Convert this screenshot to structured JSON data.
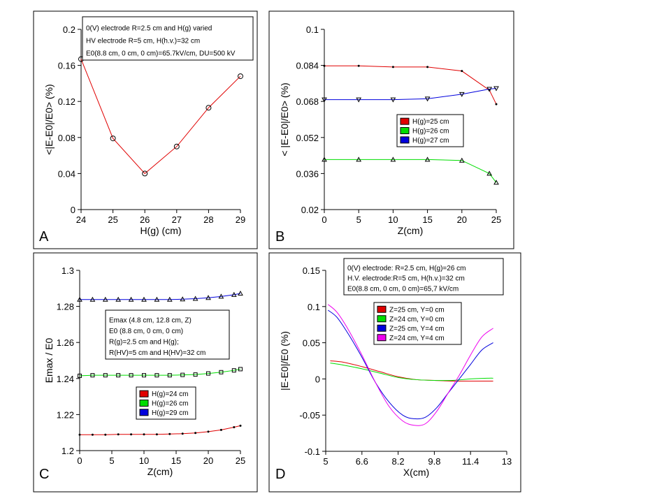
{
  "chart_data": [
    {
      "type": "line",
      "panel_label": "A",
      "xlabel": "H(g) (cm)",
      "ylabel": "<|E-E0|/E0> (%)",
      "xlim": [
        24,
        29
      ],
      "ylim": [
        0,
        0.2
      ],
      "xticks": [
        "24",
        "25",
        "26",
        "27",
        "28",
        "29"
      ],
      "yticks": [
        "0",
        "0.04",
        "0.08",
        "0.12",
        "0.16",
        "0.2"
      ],
      "annotation": [
        "0(V) electrode R=2.5 cm and H(g) varied",
        "HV electrode R=5 cm, H(h.v.)=32 cm",
        "E0(8.8 cm, 0 cm, 0 cm)=65.7kV/cm, DU=500 kV"
      ],
      "series": [
        {
          "color": "#e00000",
          "marker": "circle",
          "x": [
            24,
            25,
            26,
            27,
            28,
            29
          ],
          "y": [
            0.167,
            0.079,
            0.04,
            0.07,
            0.113,
            0.148
          ]
        }
      ]
    },
    {
      "type": "line",
      "panel_label": "B",
      "xlabel": "Z(cm)",
      "ylabel": "< |E-E0|/E0> (%)",
      "xlim": [
        0,
        25
      ],
      "ylim": [
        0.02,
        0.1
      ],
      "xticks": [
        "0",
        "5",
        "10",
        "15",
        "20",
        "25"
      ],
      "yticks": [
        "0.02",
        "0.036",
        "0.052",
        "0.068",
        "0.084",
        "0.1"
      ],
      "legend": {
        "position": "right"
      },
      "series": [
        {
          "name": "H(g)=25 cm",
          "color": "#e00000",
          "marker": "dot",
          "x": [
            0,
            5,
            10,
            15,
            20,
            24,
            25
          ],
          "y": [
            0.0838,
            0.0838,
            0.0833,
            0.0833,
            0.0815,
            0.073,
            0.0668
          ]
        },
        {
          "name": "H(g)=26 cm",
          "color": "#00dd00",
          "marker": "triangle-up",
          "x": [
            0,
            5,
            10,
            15,
            20,
            24,
            25
          ],
          "y": [
            0.0422,
            0.0422,
            0.0422,
            0.0422,
            0.0418,
            0.036,
            0.032
          ]
        },
        {
          "name": "H(g)=27 cm",
          "color": "#0000dd",
          "marker": "triangle-down",
          "x": [
            0,
            5,
            10,
            15,
            20,
            24,
            25
          ],
          "y": [
            0.0688,
            0.0688,
            0.0688,
            0.0692,
            0.0712,
            0.0735,
            0.0738
          ]
        }
      ]
    },
    {
      "type": "line",
      "panel_label": "C",
      "xlabel": "Z(cm)",
      "ylabel": "Emax / E0",
      "xlim": [
        0,
        25
      ],
      "ylim": [
        1.2,
        1.3
      ],
      "xticks": [
        "0",
        "5",
        "10",
        "15",
        "20",
        "25"
      ],
      "yticks": [
        "1.2",
        "1.22",
        "1.24",
        "1.26",
        "1.28",
        "1.3"
      ],
      "annotation": [
        "Emax (4.8 cm, 12.8 cm, Z)",
        "E0 (8.8 cm, 0 cm, 0 cm)",
        "R(g)=2.5 cm and H(g);",
        "R(HV)=5 cm and H(HV)=32 cm"
      ],
      "legend": {
        "position": "bottom-center"
      },
      "series": [
        {
          "name": "H(g)=24 cm",
          "color": "#e00000",
          "marker": "dot",
          "x": [
            0,
            2,
            4,
            6,
            8,
            10,
            12,
            14,
            16,
            18,
            20,
            22,
            24,
            25
          ],
          "y": [
            1.2088,
            1.2088,
            1.2088,
            1.209,
            1.209,
            1.209,
            1.209,
            1.2092,
            1.2094,
            1.2098,
            1.2105,
            1.2115,
            1.213,
            1.2138
          ]
        },
        {
          "name": "H(g)=26 cm",
          "color": "#00dd00",
          "marker": "square",
          "x": [
            0,
            2,
            4,
            6,
            8,
            10,
            12,
            14,
            16,
            18,
            20,
            22,
            24,
            25
          ],
          "y": [
            1.2415,
            1.2418,
            1.2418,
            1.2418,
            1.2418,
            1.2418,
            1.2418,
            1.2418,
            1.242,
            1.2422,
            1.2428,
            1.2435,
            1.2445,
            1.2452
          ]
        },
        {
          "name": "H(g)=29 cm",
          "color": "#0000dd",
          "marker": "triangle-up",
          "x": [
            0,
            2,
            4,
            6,
            8,
            10,
            12,
            14,
            16,
            18,
            20,
            22,
            24,
            25
          ],
          "y": [
            1.2838,
            1.2838,
            1.2838,
            1.2838,
            1.2838,
            1.2838,
            1.2838,
            1.2838,
            1.284,
            1.2843,
            1.2848,
            1.2855,
            1.2865,
            1.2872
          ]
        }
      ]
    },
    {
      "type": "line",
      "panel_label": "D",
      "xlabel": "X(cm)",
      "ylabel": "|E-E0|/E0 (%)",
      "xlim": [
        5,
        13
      ],
      "ylim": [
        -0.1,
        0.15
      ],
      "xticks": [
        "5",
        "6.6",
        "8.2",
        "9.8",
        "11.4",
        "13"
      ],
      "yticks": [
        "-0.1",
        "-0.05",
        "0",
        "0.05",
        "0.1",
        "0.15"
      ],
      "annotation": [
        "0(V) electrode: R=2.5 cm, H(g)=26 cm",
        "H.V. electrode:R=5 cm, H(h.v.)=32 cm",
        "E0(8.8 cm, 0 cm, 0 cm)=65,7 kV/cm"
      ],
      "legend": {
        "position": "top-center"
      },
      "series": [
        {
          "name": "Z=25 cm, Y=0 cm",
          "color": "#e00000",
          "marker": "none",
          "x": [
            5.2,
            5.8,
            6.6,
            7.4,
            8.2,
            9.0,
            9.8,
            10.6,
            11.4,
            12.2,
            12.4
          ],
          "y": [
            0.025,
            0.023,
            0.017,
            0.01,
            0.003,
            -0.001,
            -0.002,
            -0.003,
            -0.003,
            -0.003,
            -0.003
          ]
        },
        {
          "name": "Z=24 cm, Y=0 cm",
          "color": "#00dd00",
          "marker": "none",
          "x": [
            5.2,
            5.8,
            6.6,
            7.4,
            8.2,
            9.0,
            9.8,
            10.6,
            11.4,
            12.2,
            12.4
          ],
          "y": [
            0.022,
            0.019,
            0.014,
            0.008,
            0.002,
            -0.001,
            -0.002,
            -0.002,
            0.0,
            0.001,
            0.001
          ]
        },
        {
          "name": "Z=25 cm, Y=4 cm",
          "color": "#0000dd",
          "marker": "none",
          "x": [
            5.1,
            5.5,
            6.0,
            6.6,
            7.2,
            7.8,
            8.4,
            8.9,
            9.4,
            9.9,
            10.4,
            10.9,
            11.4,
            11.9,
            12.4
          ],
          "y": [
            0.095,
            0.085,
            0.062,
            0.03,
            -0.005,
            -0.032,
            -0.05,
            -0.055,
            -0.053,
            -0.04,
            -0.02,
            0.0,
            0.02,
            0.04,
            0.05
          ]
        },
        {
          "name": "Z=24 cm, Y=4 cm",
          "color": "#ee00ee",
          "marker": "none",
          "x": [
            5.1,
            5.5,
            6.0,
            6.6,
            7.2,
            7.8,
            8.4,
            8.9,
            9.4,
            9.9,
            10.4,
            10.9,
            11.4,
            11.9,
            12.4
          ],
          "y": [
            0.103,
            0.092,
            0.068,
            0.033,
            -0.005,
            -0.038,
            -0.058,
            -0.064,
            -0.062,
            -0.045,
            -0.02,
            0.005,
            0.033,
            0.058,
            0.07
          ]
        }
      ]
    }
  ]
}
